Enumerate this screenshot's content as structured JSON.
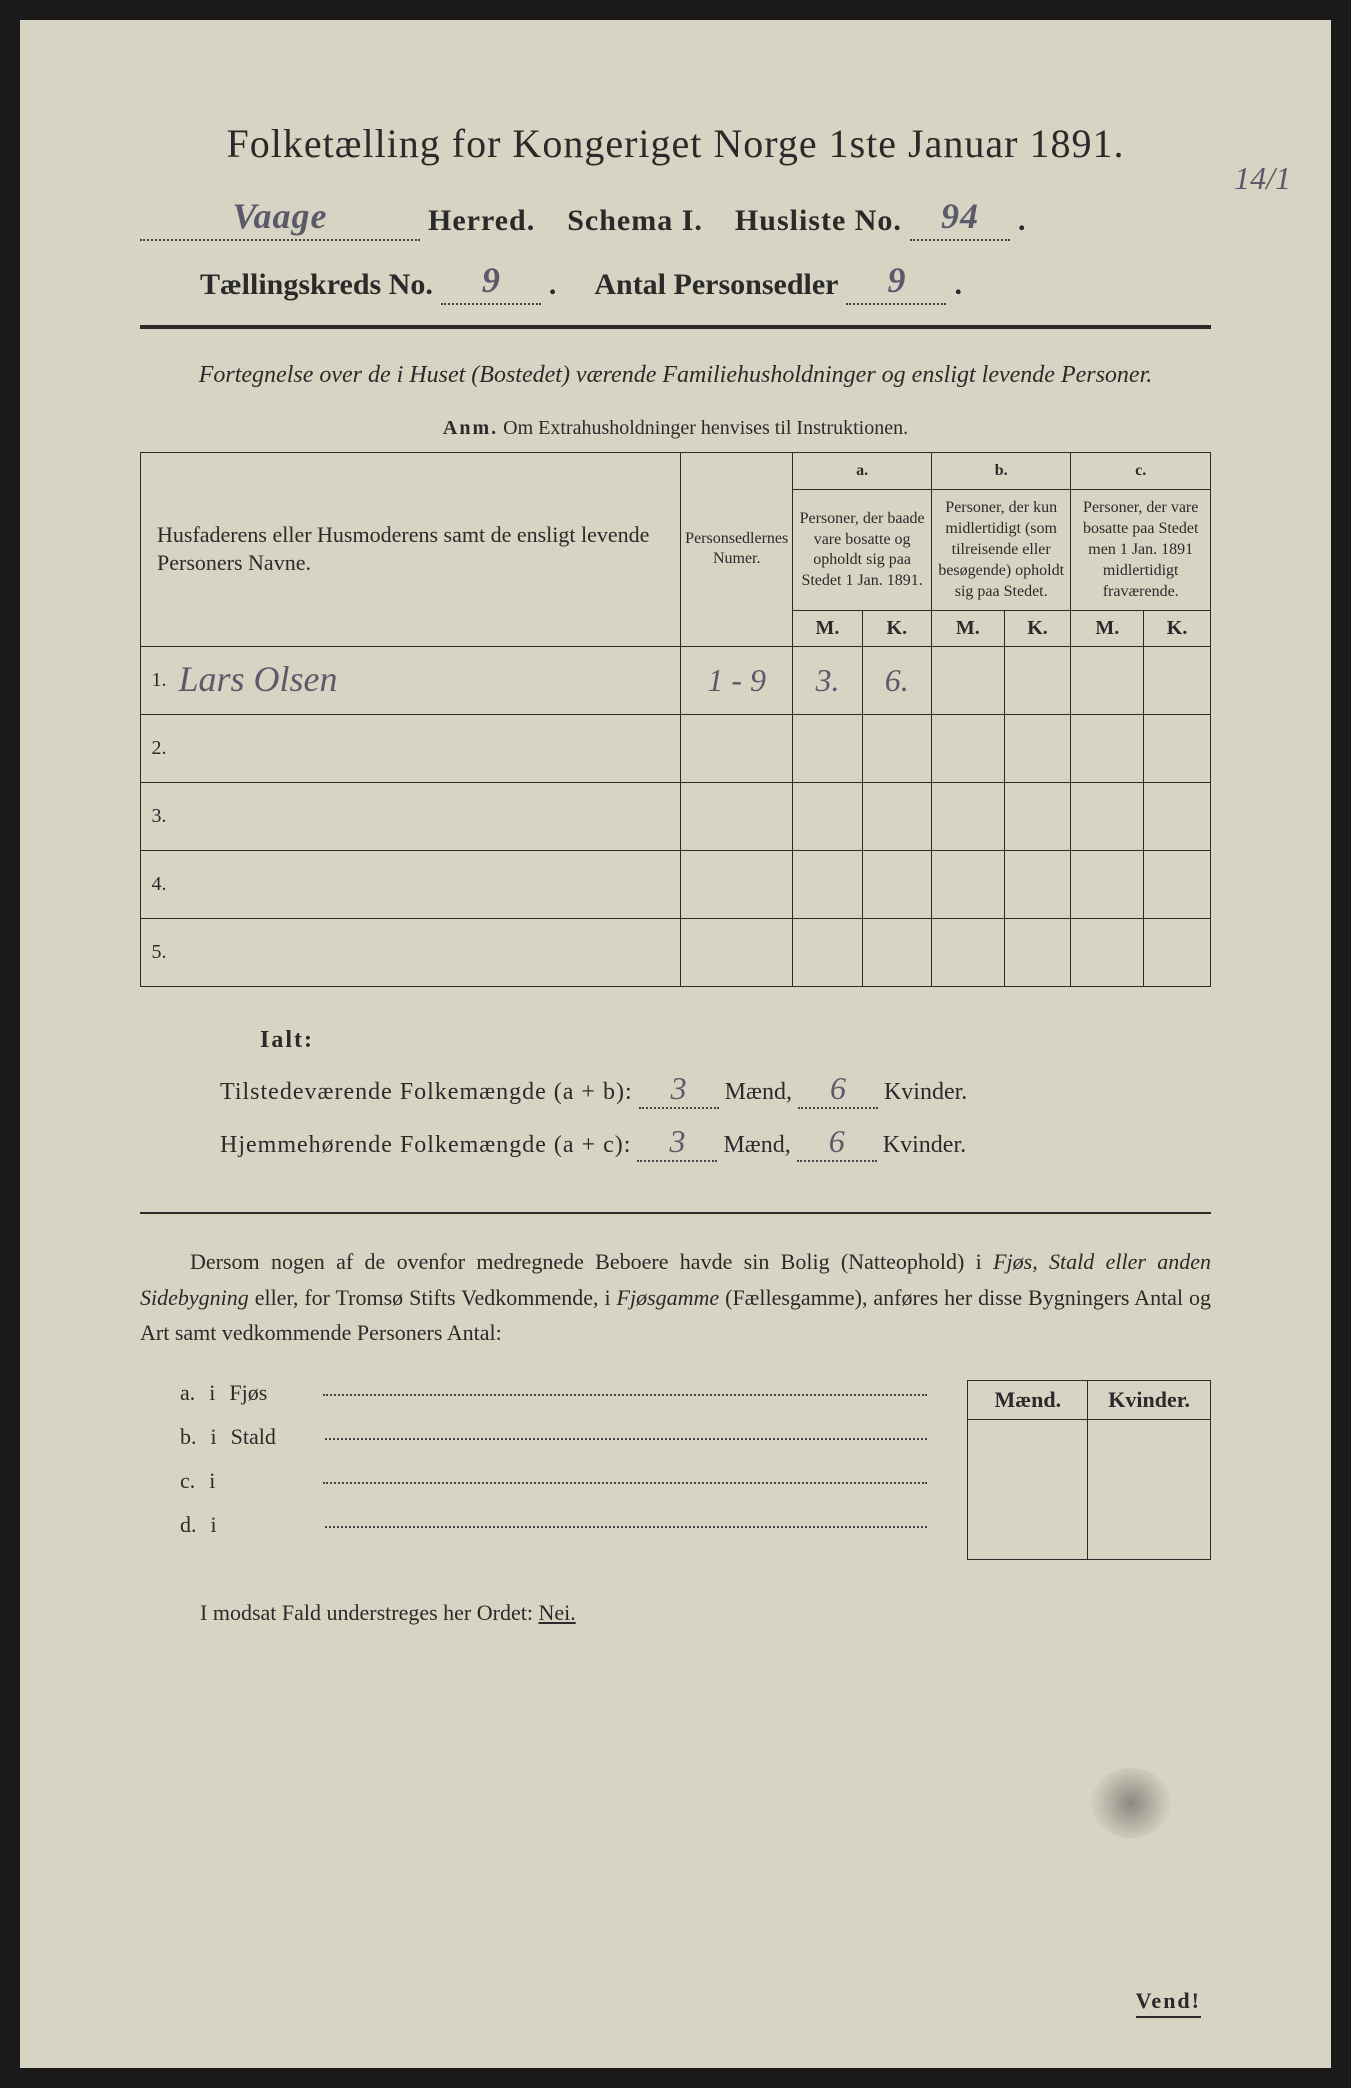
{
  "colors": {
    "paper": "#d8d4c4",
    "ink": "#2a2a2a",
    "handwriting": "#5a5a6a",
    "background": "#1a1a1a"
  },
  "title": "Folketælling for Kongeriget Norge 1ste Januar 1891.",
  "header": {
    "herred_value": "Vaage",
    "herred_label": "Herred.",
    "schema_label": "Schema I.",
    "husliste_label": "Husliste No.",
    "husliste_value": "94",
    "kreds_label": "Tællingskreds No.",
    "kreds_value": "9",
    "personsedler_label": "Antal Personsedler",
    "personsedler_value": "9",
    "margin_note": "14/1"
  },
  "subtitle": "Fortegnelse over de i Huset (Bostedet) værende Familiehusholdninger og ensligt levende Personer.",
  "anm_label": "Anm.",
  "anm_text": "Om Extrahusholdninger henvises til Instruktionen.",
  "table": {
    "col_names": "Husfaderens eller Husmoderens samt de ensligt levende Personers Navne.",
    "col_numer": "Personsedlernes Numer.",
    "col_a_label": "a.",
    "col_a": "Personer, der baade vare bosatte og opholdt sig paa Stedet 1 Jan. 1891.",
    "col_b_label": "b.",
    "col_b": "Personer, der kun midlertidigt (som tilreisende eller besøgende) opholdt sig paa Stedet.",
    "col_c_label": "c.",
    "col_c": "Personer, der vare bosatte paa Stedet men 1 Jan. 1891 midlertidigt fraværende.",
    "m": "M.",
    "k": "K.",
    "rows": [
      {
        "n": "1.",
        "name": "Lars Olsen",
        "numer": "1 - 9",
        "a_m": "3.",
        "a_k": "6.",
        "b_m": "",
        "b_k": "",
        "c_m": "",
        "c_k": ""
      },
      {
        "n": "2.",
        "name": "",
        "numer": "",
        "a_m": "",
        "a_k": "",
        "b_m": "",
        "b_k": "",
        "c_m": "",
        "c_k": ""
      },
      {
        "n": "3.",
        "name": "",
        "numer": "",
        "a_m": "",
        "a_k": "",
        "b_m": "",
        "b_k": "",
        "c_m": "",
        "c_k": ""
      },
      {
        "n": "4.",
        "name": "",
        "numer": "",
        "a_m": "",
        "a_k": "",
        "b_m": "",
        "b_k": "",
        "c_m": "",
        "c_k": ""
      },
      {
        "n": "5.",
        "name": "",
        "numer": "",
        "a_m": "",
        "a_k": "",
        "b_m": "",
        "b_k": "",
        "c_m": "",
        "c_k": ""
      }
    ]
  },
  "ialt": {
    "title": "Ialt:",
    "line1_label": "Tilstedeværende Folkemængde (a + b):",
    "line2_label": "Hjemmehørende Folkemængde (a + c):",
    "maend": "Mænd,",
    "kvinder": "Kvinder.",
    "line1_m": "3",
    "line1_k": "6",
    "line2_m": "3",
    "line2_k": "6"
  },
  "dersom": {
    "text1": "Dersom nogen af de ovenfor medregnede Beboere havde sin Bolig (Natteophold) i ",
    "italic1": "Fjøs, Stald eller anden Sidebygning",
    "text2": " eller, for Tromsø Stifts Vedkommende, i ",
    "italic2": "Fjøsgamme",
    "text3": " (Fællesgamme), anføres her disse Bygningers Antal og Art samt vedkommende Personers Antal:"
  },
  "sidebuilding": {
    "maend": "Mænd.",
    "kvinder": "Kvinder.",
    "rows": [
      {
        "letter": "a.",
        "i": "i",
        "label": "Fjøs"
      },
      {
        "letter": "b.",
        "i": "i",
        "label": "Stald"
      },
      {
        "letter": "c.",
        "i": "i",
        "label": ""
      },
      {
        "letter": "d.",
        "i": "i",
        "label": ""
      }
    ]
  },
  "modsat": "I modsat Fald understreges her Ordet: ",
  "nei": "Nei.",
  "vend": "Vend!"
}
